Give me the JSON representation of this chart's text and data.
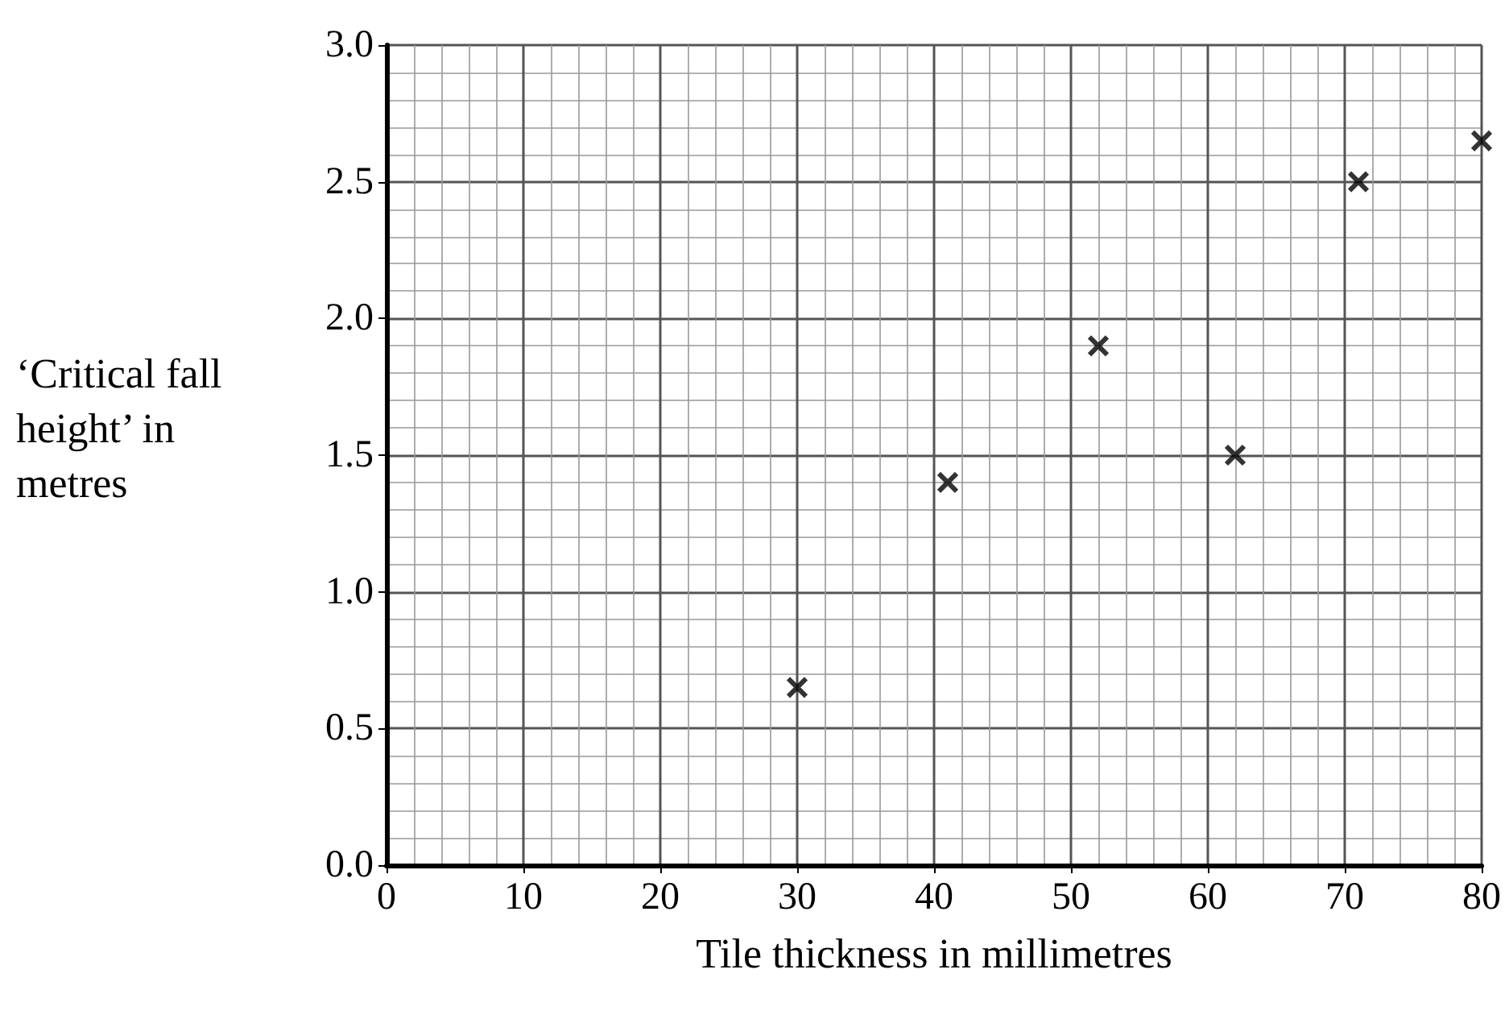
{
  "chart_data": {
    "type": "scatter",
    "xlabel": "Tile thickness in millimetres",
    "ylabel": "‘Critical fall height’ in metres",
    "x": [
      30,
      41,
      52,
      62,
      71,
      80
    ],
    "values": [
      0.65,
      1.4,
      1.9,
      1.5,
      2.5,
      2.65
    ],
    "color": "#000000",
    "marker": "cross",
    "xlim": [
      0,
      80
    ],
    "xticks": [
      0,
      10,
      20,
      30,
      40,
      50,
      60,
      70,
      80
    ],
    "ylim": [
      0,
      3
    ],
    "yticks": [
      {
        "value": 0,
        "label": "0.0"
      },
      {
        "value": 0.5,
        "label": "0.5"
      },
      {
        "value": 1,
        "label": "1.0"
      },
      {
        "value": 1.5,
        "label": "1.5"
      },
      {
        "value": 2,
        "label": "2.0"
      },
      {
        "value": 2.5,
        "label": "2.5"
      },
      {
        "value": 3,
        "label": "3.0"
      }
    ],
    "grid": true
  }
}
